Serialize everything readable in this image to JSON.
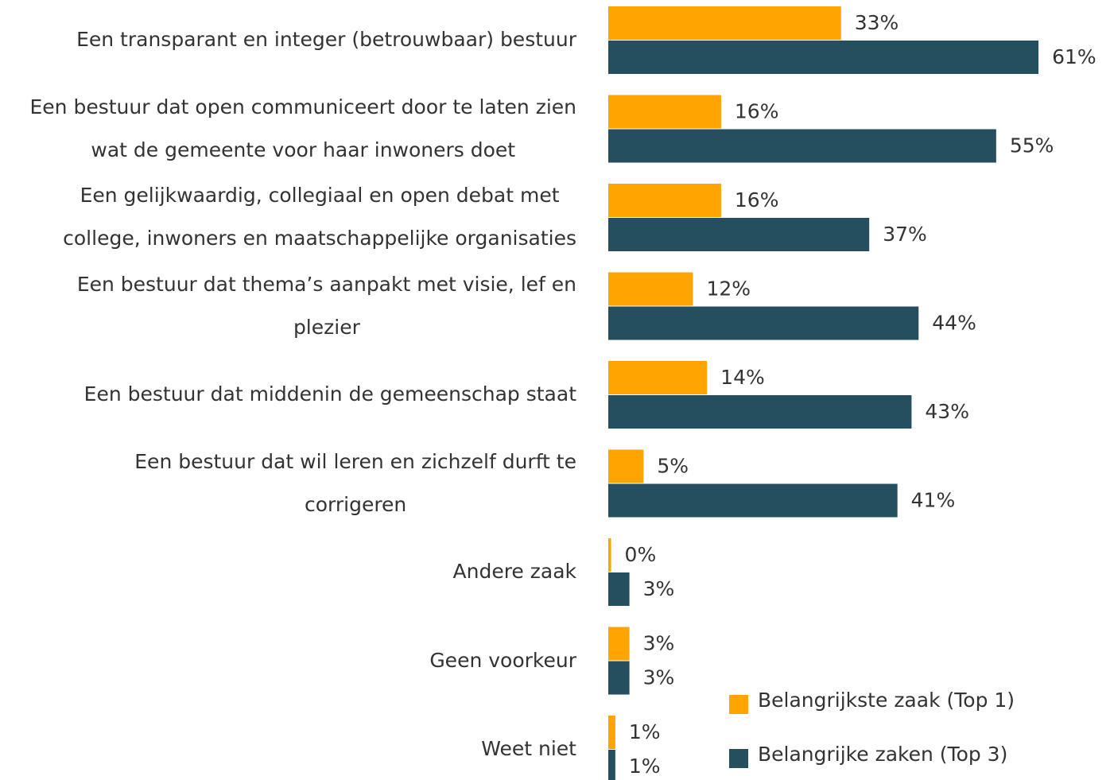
{
  "chart_data": {
    "type": "bar",
    "orientation": "horizontal",
    "categories": [
      "Een transparant en integer (betrouwbaar) bestuur",
      "Een bestuur dat open communiceert door te laten zien\nwat de gemeente voor haar inwoners doet",
      "Een gelijkwaardig, collegiaal en open debat met\ncollege, inwoners en maatschappelijke organisaties",
      "Een bestuur dat thema’s aanpakt met visie, lef en\nplezier",
      "Een bestuur dat middenin de gemeenschap staat",
      "Een bestuur dat wil leren en zichzelf durft te\ncorrigeren",
      "Andere zaak",
      "Geen voorkeur",
      "Weet niet"
    ],
    "series": [
      {
        "name": "Belangrijkste zaak (Top 1)",
        "color": "#FFA400",
        "values": [
          33,
          16,
          16,
          12,
          14,
          5,
          0.4,
          3,
          1
        ],
        "value_labels": [
          "33%",
          "16%",
          "16%",
          "12%",
          "14%",
          "5%",
          "0%",
          "3%",
          "1%"
        ]
      },
      {
        "name": "Belangrijke zaken (Top 3)",
        "color": "#234F5E",
        "values": [
          61,
          55,
          37,
          44,
          43,
          41,
          3,
          3,
          1
        ],
        "value_labels": [
          "61%",
          "55%",
          "37%",
          "44%",
          "43%",
          "41%",
          "3%",
          "3%",
          "1%"
        ]
      }
    ]
  }
}
